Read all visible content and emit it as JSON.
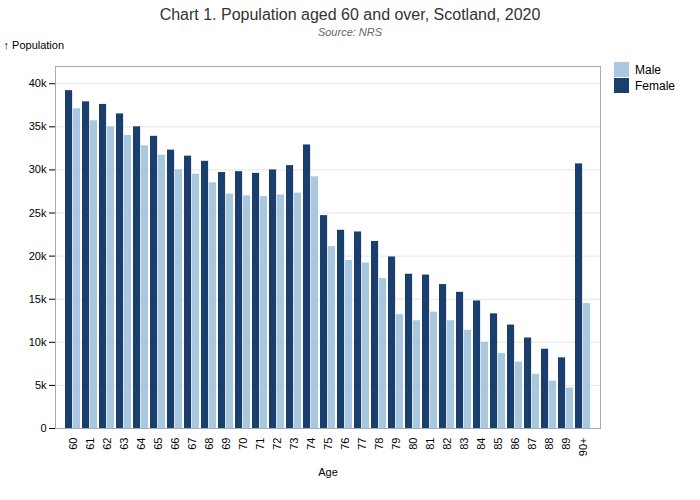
{
  "chart_data": {
    "type": "bar",
    "title": "Chart 1. Population aged 60 and over, Scotland, 2020",
    "subtitle": "Source: NRS",
    "xlabel": "Age",
    "ylabel": "Population",
    "categories": [
      "60",
      "61",
      "62",
      "63",
      "64",
      "65",
      "66",
      "67",
      "68",
      "69",
      "70",
      "71",
      "72",
      "73",
      "74",
      "75",
      "76",
      "77",
      "78",
      "79",
      "80",
      "81",
      "82",
      "83",
      "84",
      "85",
      "86",
      "87",
      "88",
      "89",
      "90+"
    ],
    "series": [
      {
        "name": "Male",
        "color": "#a8c8e0",
        "values": [
          37100,
          35700,
          35000,
          34000,
          32800,
          31700,
          30000,
          29500,
          28500,
          27200,
          27000,
          26900,
          27100,
          27300,
          29200,
          21100,
          19500,
          19200,
          17400,
          13200,
          12500,
          13500,
          12500,
          11400,
          10000,
          8700,
          7700,
          6300,
          5500,
          4700,
          14500
        ]
      },
      {
        "name": "Female",
        "color": "#1a3f6f",
        "values": [
          39200,
          37900,
          37600,
          36500,
          35000,
          33900,
          32300,
          31600,
          31000,
          29700,
          29800,
          29600,
          30000,
          30500,
          32900,
          24700,
          23000,
          22800,
          21700,
          19900,
          17900,
          17800,
          16700,
          15800,
          14800,
          13300,
          12000,
          10500,
          9200,
          8200,
          30700
        ]
      }
    ],
    "ylim": [
      0,
      42000
    ],
    "yticks": [
      0,
      {
        "value": 5000,
        "label": "5k"
      },
      {
        "value": 10000,
        "label": "10k"
      },
      {
        "value": 15000,
        "label": "15k"
      },
      {
        "value": 20000,
        "label": "20k"
      },
      {
        "value": 25000,
        "label": "25k"
      },
      {
        "value": 30000,
        "label": "30k"
      },
      {
        "value": 35000,
        "label": "35k"
      },
      {
        "value": 40000,
        "label": "40k"
      }
    ],
    "grid": true,
    "legend": "right"
  }
}
